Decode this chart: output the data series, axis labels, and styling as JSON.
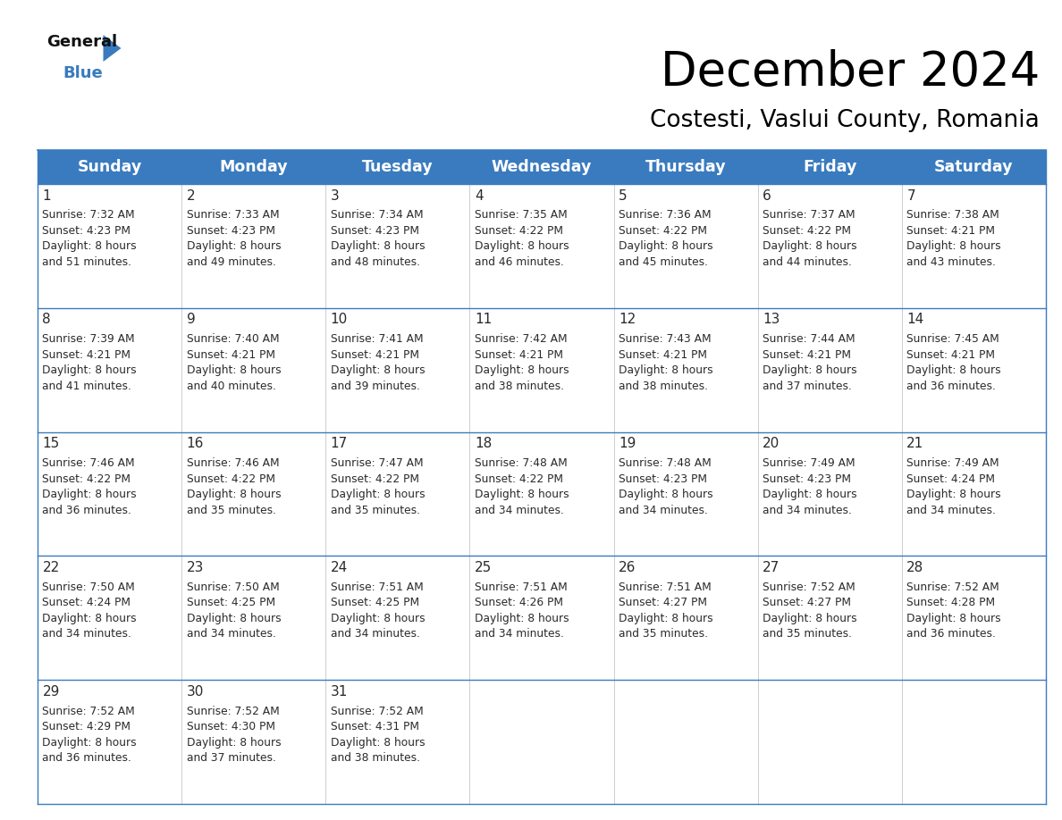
{
  "title": "December 2024",
  "subtitle": "Costesti, Vaslui County, Romania",
  "header_bg": "#3a7bbf",
  "header_text": "#ffffff",
  "day_names": [
    "Sunday",
    "Monday",
    "Tuesday",
    "Wednesday",
    "Thursday",
    "Friday",
    "Saturday"
  ],
  "calendar": [
    [
      {
        "day": 1,
        "sunrise": "7:32 AM",
        "sunset": "4:23 PM",
        "daylight_hrs": 8,
        "daylight_min": 51
      },
      {
        "day": 2,
        "sunrise": "7:33 AM",
        "sunset": "4:23 PM",
        "daylight_hrs": 8,
        "daylight_min": 49
      },
      {
        "day": 3,
        "sunrise": "7:34 AM",
        "sunset": "4:23 PM",
        "daylight_hrs": 8,
        "daylight_min": 48
      },
      {
        "day": 4,
        "sunrise": "7:35 AM",
        "sunset": "4:22 PM",
        "daylight_hrs": 8,
        "daylight_min": 46
      },
      {
        "day": 5,
        "sunrise": "7:36 AM",
        "sunset": "4:22 PM",
        "daylight_hrs": 8,
        "daylight_min": 45
      },
      {
        "day": 6,
        "sunrise": "7:37 AM",
        "sunset": "4:22 PM",
        "daylight_hrs": 8,
        "daylight_min": 44
      },
      {
        "day": 7,
        "sunrise": "7:38 AM",
        "sunset": "4:21 PM",
        "daylight_hrs": 8,
        "daylight_min": 43
      }
    ],
    [
      {
        "day": 8,
        "sunrise": "7:39 AM",
        "sunset": "4:21 PM",
        "daylight_hrs": 8,
        "daylight_min": 41
      },
      {
        "day": 9,
        "sunrise": "7:40 AM",
        "sunset": "4:21 PM",
        "daylight_hrs": 8,
        "daylight_min": 40
      },
      {
        "day": 10,
        "sunrise": "7:41 AM",
        "sunset": "4:21 PM",
        "daylight_hrs": 8,
        "daylight_min": 39
      },
      {
        "day": 11,
        "sunrise": "7:42 AM",
        "sunset": "4:21 PM",
        "daylight_hrs": 8,
        "daylight_min": 38
      },
      {
        "day": 12,
        "sunrise": "7:43 AM",
        "sunset": "4:21 PM",
        "daylight_hrs": 8,
        "daylight_min": 38
      },
      {
        "day": 13,
        "sunrise": "7:44 AM",
        "sunset": "4:21 PM",
        "daylight_hrs": 8,
        "daylight_min": 37
      },
      {
        "day": 14,
        "sunrise": "7:45 AM",
        "sunset": "4:21 PM",
        "daylight_hrs": 8,
        "daylight_min": 36
      }
    ],
    [
      {
        "day": 15,
        "sunrise": "7:46 AM",
        "sunset": "4:22 PM",
        "daylight_hrs": 8,
        "daylight_min": 36
      },
      {
        "day": 16,
        "sunrise": "7:46 AM",
        "sunset": "4:22 PM",
        "daylight_hrs": 8,
        "daylight_min": 35
      },
      {
        "day": 17,
        "sunrise": "7:47 AM",
        "sunset": "4:22 PM",
        "daylight_hrs": 8,
        "daylight_min": 35
      },
      {
        "day": 18,
        "sunrise": "7:48 AM",
        "sunset": "4:22 PM",
        "daylight_hrs": 8,
        "daylight_min": 34
      },
      {
        "day": 19,
        "sunrise": "7:48 AM",
        "sunset": "4:23 PM",
        "daylight_hrs": 8,
        "daylight_min": 34
      },
      {
        "day": 20,
        "sunrise": "7:49 AM",
        "sunset": "4:23 PM",
        "daylight_hrs": 8,
        "daylight_min": 34
      },
      {
        "day": 21,
        "sunrise": "7:49 AM",
        "sunset": "4:24 PM",
        "daylight_hrs": 8,
        "daylight_min": 34
      }
    ],
    [
      {
        "day": 22,
        "sunrise": "7:50 AM",
        "sunset": "4:24 PM",
        "daylight_hrs": 8,
        "daylight_min": 34
      },
      {
        "day": 23,
        "sunrise": "7:50 AM",
        "sunset": "4:25 PM",
        "daylight_hrs": 8,
        "daylight_min": 34
      },
      {
        "day": 24,
        "sunrise": "7:51 AM",
        "sunset": "4:25 PM",
        "daylight_hrs": 8,
        "daylight_min": 34
      },
      {
        "day": 25,
        "sunrise": "7:51 AM",
        "sunset": "4:26 PM",
        "daylight_hrs": 8,
        "daylight_min": 34
      },
      {
        "day": 26,
        "sunrise": "7:51 AM",
        "sunset": "4:27 PM",
        "daylight_hrs": 8,
        "daylight_min": 35
      },
      {
        "day": 27,
        "sunrise": "7:52 AM",
        "sunset": "4:27 PM",
        "daylight_hrs": 8,
        "daylight_min": 35
      },
      {
        "day": 28,
        "sunrise": "7:52 AM",
        "sunset": "4:28 PM",
        "daylight_hrs": 8,
        "daylight_min": 36
      }
    ],
    [
      {
        "day": 29,
        "sunrise": "7:52 AM",
        "sunset": "4:29 PM",
        "daylight_hrs": 8,
        "daylight_min": 36
      },
      {
        "day": 30,
        "sunrise": "7:52 AM",
        "sunset": "4:30 PM",
        "daylight_hrs": 8,
        "daylight_min": 37
      },
      {
        "day": 31,
        "sunrise": "7:52 AM",
        "sunset": "4:31 PM",
        "daylight_hrs": 8,
        "daylight_min": 38
      },
      null,
      null,
      null,
      null
    ]
  ],
  "logo_triangle_color": "#3a7bbf",
  "cell_border_color": "#3a7bbf",
  "title_fontsize": 38,
  "subtitle_fontsize": 19,
  "header_fontsize": 12.5,
  "day_num_fontsize": 11,
  "cell_fontsize": 8.8
}
